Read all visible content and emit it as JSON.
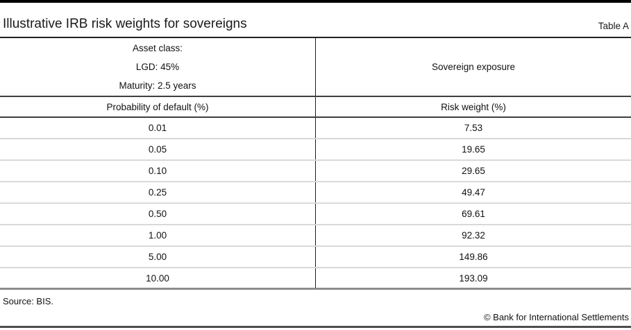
{
  "header": {
    "title": "Illustrative IRB risk weights for sovereigns",
    "table_label": "Table A"
  },
  "table": {
    "asset_lines": [
      "Asset class:",
      "LGD: 45%",
      "Maturity: 2.5 years"
    ],
    "exposure_label": "Sovereign exposure",
    "columns": [
      "Probability of default (%)",
      "Risk weight (%)"
    ],
    "rows": [
      [
        "0.01",
        "7.53"
      ],
      [
        "0.05",
        "19.65"
      ],
      [
        "0.10",
        "29.65"
      ],
      [
        "0.25",
        "49.47"
      ],
      [
        "0.50",
        "69.61"
      ],
      [
        "1.00",
        "92.32"
      ],
      [
        "5.00",
        "149.86"
      ],
      [
        "10.00",
        "193.09"
      ]
    ]
  },
  "footer": {
    "source": "Source: BIS.",
    "copyright": "© Bank for International Settlements"
  },
  "chart_data": {
    "type": "table",
    "title": "Illustrative IRB risk weights for sovereigns",
    "columns": [
      "Probability of default (%)",
      "Risk weight (%)"
    ],
    "rows": [
      [
        0.01,
        7.53
      ],
      [
        0.05,
        19.65
      ],
      [
        0.1,
        29.65
      ],
      [
        0.25,
        49.47
      ],
      [
        0.5,
        69.61
      ],
      [
        1.0,
        92.32
      ],
      [
        5.0,
        149.86
      ],
      [
        10.0,
        193.09
      ]
    ],
    "notes": {
      "asset_class": "Sovereign exposure",
      "lgd": "45%",
      "maturity": "2.5 years",
      "source": "BIS"
    }
  }
}
